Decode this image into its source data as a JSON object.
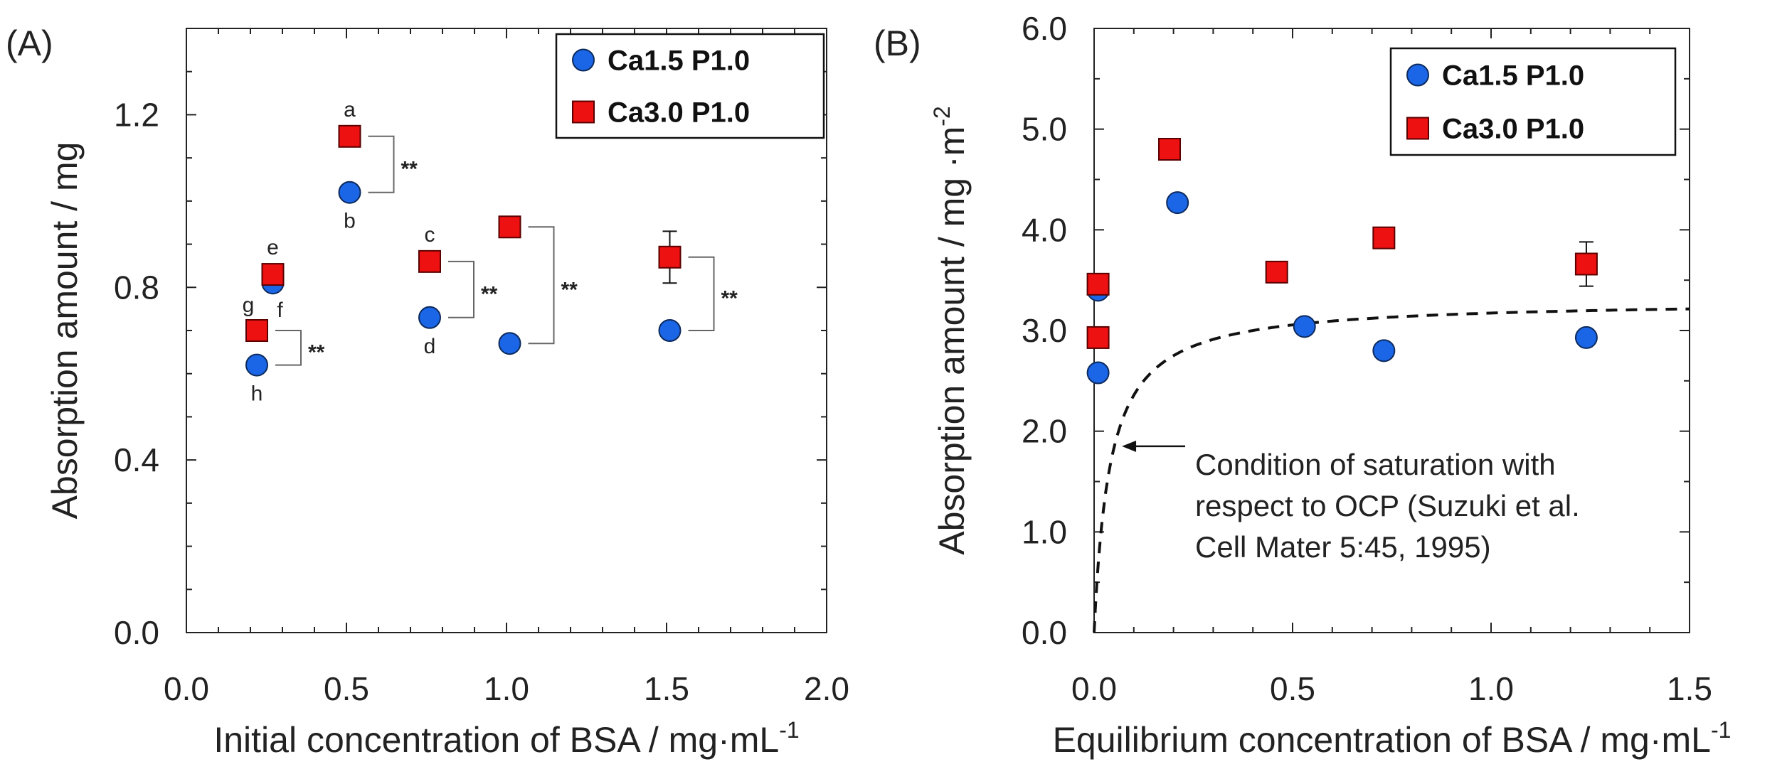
{
  "colors": {
    "series1_fill": "#1a66e6",
    "series1_stroke": "#0d2a5c",
    "series2_fill": "#ee1111",
    "series2_stroke": "#5a0000",
    "axis": "#222222"
  },
  "chart_data": [
    {
      "panel": "(A)",
      "type": "scatter",
      "xlabel": "Initial concentration of BSA / mg·mL",
      "xlabel_sup": "-1",
      "ylabel": "Absorption amount / mg",
      "xlim": [
        0.0,
        2.0
      ],
      "ylim": [
        0.0,
        1.4
      ],
      "xticks": [
        "0.0",
        "0.5",
        "1.0",
        "1.5",
        "2.0"
      ],
      "yticks": [
        "0.0",
        "0.4",
        "0.8",
        "1.2"
      ],
      "legend": [
        "Ca1.5 P1.0",
        "Ca3.0 P1.0"
      ],
      "legend_position": "top-right",
      "series": [
        {
          "name": "Ca1.5 P1.0",
          "marker": "circle",
          "x": [
            0.22,
            0.27,
            0.51,
            0.76,
            1.01,
            1.51
          ],
          "y": [
            0.62,
            0.81,
            1.02,
            0.73,
            0.67,
            0.7
          ],
          "err": [
            0,
            0,
            0,
            0,
            0,
            0
          ]
        },
        {
          "name": "Ca3.0 P1.0",
          "marker": "square",
          "x": [
            0.22,
            0.27,
            0.51,
            0.76,
            1.01,
            1.51
          ],
          "y": [
            0.7,
            0.83,
            1.15,
            0.86,
            0.94,
            0.87
          ],
          "err": [
            0,
            0.01,
            0.02,
            0.02,
            0,
            0.06
          ]
        }
      ],
      "letters": [
        {
          "text": "a",
          "x": 0.51,
          "y": 1.15,
          "pos": "above"
        },
        {
          "text": "b",
          "x": 0.51,
          "y": 1.02,
          "pos": "below"
        },
        {
          "text": "c",
          "x": 0.76,
          "y": 0.86,
          "pos": "above"
        },
        {
          "text": "d",
          "x": 0.76,
          "y": 0.73,
          "pos": "below"
        },
        {
          "text": "e",
          "x": 0.27,
          "y": 0.83,
          "pos": "above"
        },
        {
          "text": "f",
          "x": 0.27,
          "y": 0.81,
          "pos": "belowright"
        },
        {
          "text": "g",
          "x": 0.22,
          "y": 0.7,
          "pos": "aboveleft"
        },
        {
          "text": "h",
          "x": 0.22,
          "y": 0.62,
          "pos": "below"
        }
      ],
      "brackets": [
        {
          "x": 0.22,
          "y_top": 0.7,
          "y_bottom": 0.62,
          "label": "**"
        },
        {
          "x": 0.51,
          "y_top": 1.15,
          "y_bottom": 1.02,
          "label": "**"
        },
        {
          "x": 0.76,
          "y_top": 0.86,
          "y_bottom": 0.73,
          "label": "**"
        },
        {
          "x": 1.01,
          "y_top": 0.94,
          "y_bottom": 0.67,
          "label": "**"
        },
        {
          "x": 1.51,
          "y_top": 0.87,
          "y_bottom": 0.7,
          "label": "**"
        }
      ]
    },
    {
      "panel": "(B)",
      "type": "scatter",
      "xlabel": "Equilibrium concentration of BSA / mg·mL",
      "xlabel_sup": "-1",
      "ylabel": "Absorption amount / mg ·m",
      "ylabel_sup": "-2",
      "xlim": [
        0.0,
        1.5
      ],
      "ylim": [
        0.0,
        6.0
      ],
      "xticks": [
        "0.0",
        "0.5",
        "1.0",
        "1.5"
      ],
      "yticks": [
        "0.0",
        "1.0",
        "2.0",
        "3.0",
        "4.0",
        "5.0",
        "6.0"
      ],
      "legend": [
        "Ca1.5 P1.0",
        "Ca3.0 P1.0"
      ],
      "legend_position": "top-right",
      "series": [
        {
          "name": "Ca1.5 P1.0",
          "marker": "circle",
          "x": [
            0.01,
            0.01,
            0.21,
            0.53,
            0.73,
            1.24
          ],
          "y": [
            2.58,
            3.4,
            4.27,
            3.04,
            2.8,
            2.93
          ],
          "err": [
            0,
            0,
            0,
            0,
            0,
            0
          ]
        },
        {
          "name": "Ca3.0 P1.0",
          "marker": "square",
          "x": [
            0.01,
            0.01,
            0.19,
            0.46,
            0.73,
            1.24
          ],
          "y": [
            2.93,
            3.46,
            4.8,
            3.58,
            3.92,
            3.66
          ],
          "err": [
            0,
            0,
            0.08,
            0.05,
            0.05,
            0.22
          ]
        }
      ],
      "curve": {
        "style": "dashed",
        "model": "langmuir",
        "qmax": 3.3,
        "K": 25
      },
      "annotation": {
        "lines": [
          "Condition of saturation with",
          "respect to OCP (Suzuki et al.",
          "Cell Mater 5:45, 1995)"
        ],
        "arrow_to": {
          "x": 0.07,
          "y": 1.85
        }
      }
    }
  ]
}
